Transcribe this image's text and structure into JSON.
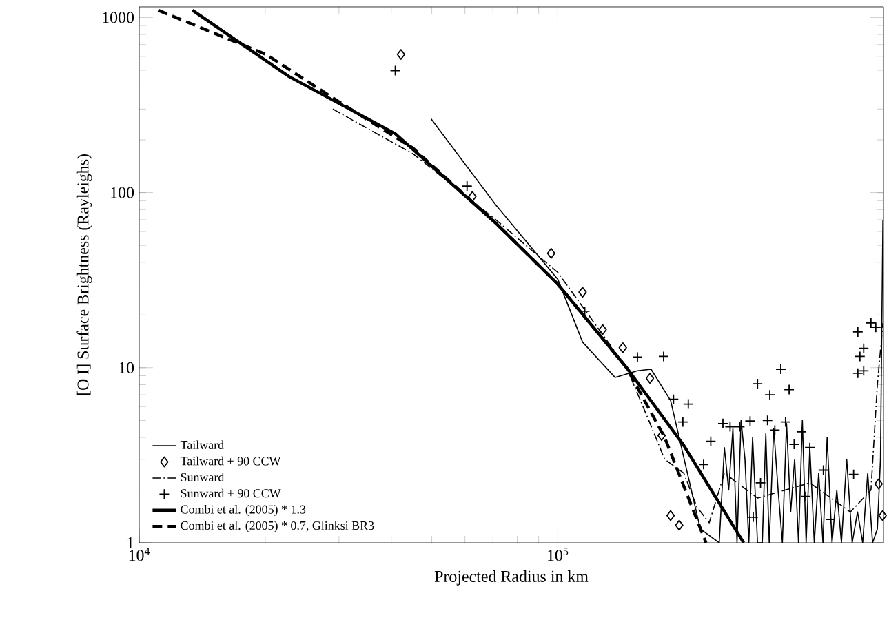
{
  "chart_data": {
    "type": "line",
    "xlabel": "Projected Radius in km",
    "ylabel": "[O I] Surface Brightness (Rayleighs)",
    "log": "xy",
    "xlim": [
      10000,
      600000
    ],
    "ylim": [
      1,
      1150
    ],
    "xticks": [
      {
        "value": 10000,
        "label": "10$^{4}$"
      },
      {
        "value": 100000,
        "label": "10$^{5}$"
      }
    ],
    "yticks": [
      1,
      10,
      100,
      1000
    ],
    "legend": "bottom left",
    "grid": false,
    "series": [
      {
        "name": "Tailward",
        "color": "#000000",
        "line_style": "solid",
        "x": [
          49800,
          71100,
          100000,
          114600,
          137000,
          155000,
          167000,
          186000,
          219000,
          243000,
          250000,
          256000,
          262000,
          268000,
          274000,
          280000,
          286000,
          292000,
          300000,
          308000,
          314000,
          320000,
          328000,
          336000,
          344000,
          352000,
          360000,
          368000,
          376000,
          384000,
          392000,
          400000,
          410000,
          420000,
          430000,
          440000,
          452000,
          464000,
          476000,
          490000,
          505000,
          520000,
          535000,
          550000,
          565000,
          580000,
          590000,
          598000
        ],
        "values": [
          264,
          85,
          32,
          14,
          8.8,
          9.6,
          9.8,
          6.5,
          1.2,
          1,
          3.5,
          2,
          4.5,
          1,
          5,
          3,
          1,
          4,
          1,
          1,
          4.2,
          1,
          4.5,
          2,
          1,
          4.8,
          1.5,
          3,
          1,
          5,
          1,
          3.5,
          1,
          2.5,
          1,
          4,
          1,
          2,
          1,
          3,
          1,
          1.5,
          1,
          2.5,
          1,
          1.2,
          3,
          70
        ]
      },
      {
        "name": "Tailward + 90 CCW",
        "type": "scatter",
        "color": "#000000",
        "marker": "diamond",
        "x": [
          42200,
          62500,
          96400,
          114600,
          128000,
          143000,
          166000,
          177000,
          186000,
          195000,
          584000,
          597000
        ],
        "values": [
          615,
          95,
          45,
          27,
          16.5,
          13,
          8.7,
          4.1,
          1.43,
          1.26,
          2.17,
          1.43
        ]
      },
      {
        "name": "Sunward",
        "color": "#000000",
        "line_style": "dashdot",
        "x": [
          29000,
          45200,
          71100,
          100000,
          146000,
          165000,
          180000,
          200000,
          215000,
          230000,
          250000,
          300000,
          400000,
          500000,
          560000,
          580000,
          598000
        ],
        "values": [
          300,
          166,
          70,
          35,
          10,
          5,
          3,
          2.5,
          1.6,
          1.3,
          2.5,
          1.8,
          2.2,
          1.5,
          2,
          8,
          18
        ]
      },
      {
        "name": "Sunward + 90 CCW",
        "type": "scatter",
        "color": "#000000",
        "marker": "cross",
        "x": [
          40900,
          60700,
          116000,
          155000,
          179000,
          189000,
          205000,
          199000,
          232000,
          223000,
          248000,
          258000,
          272000,
          288000,
          300000,
          321000,
          341000,
          357000,
          317000,
          350000,
          330000,
          382000,
          400000,
          367000,
          305000,
          293000,
          391000,
          431000,
          448000,
          509000,
          521000,
          538000,
          527000,
          538000,
          521000,
          560000,
          575000
        ],
        "values": [
          497,
          109,
          21,
          11.5,
          11.6,
          6.6,
          6.2,
          4.9,
          3.8,
          2.8,
          4.8,
          4.6,
          4.6,
          4.96,
          8.1,
          7,
          9.8,
          7.5,
          5,
          4.9,
          4.4,
          4.3,
          3.5,
          3.65,
          2.2,
          1.4,
          1.84,
          2.6,
          1.36,
          2.46,
          16,
          12.9,
          11.6,
          9.6,
          9.3,
          18,
          17
        ]
      },
      {
        "name": "Combi et al. (2005) * 1.3",
        "color": "#000000",
        "line_style": "solid",
        "x": [
          13400,
          22800,
          40900,
          71100,
          100000,
          146000,
          200000,
          278000
        ],
        "values": [
          1100,
          460,
          217,
          67,
          30,
          10,
          3.6,
          1
        ]
      },
      {
        "name": "Combi et al. (2005) * 0.7, Glinksi BR3",
        "color": "#000000",
        "line_style": "dashed",
        "x": [
          11100,
          20100,
          30000,
          45000,
          71100,
          100000,
          146000,
          180000,
          226000
        ],
        "values": [
          1100,
          615,
          330,
          180,
          67,
          30,
          10,
          4,
          1
        ]
      }
    ]
  }
}
